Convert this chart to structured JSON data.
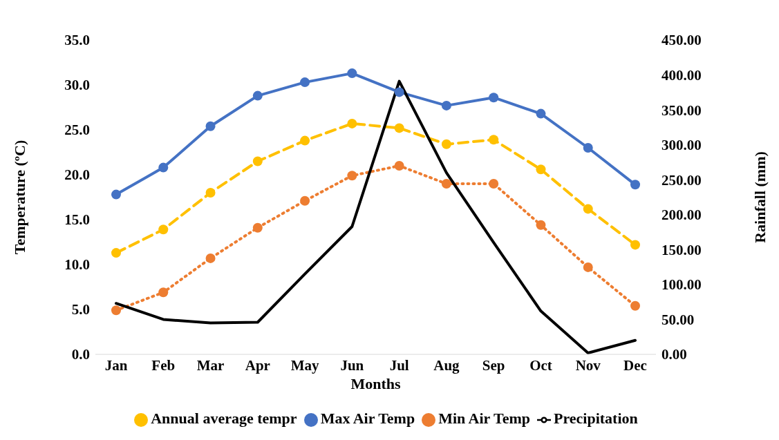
{
  "chart_data": {
    "type": "line",
    "xlabel": "Months",
    "ylabel": "Temperature (ºC)",
    "y2label": "Rainfall (mm)",
    "categories": [
      "Jan",
      "Feb",
      "Mar",
      "Apr",
      "May",
      "Jun",
      "Jul",
      "Aug",
      "Sep",
      "Oct",
      "Nov",
      "Dec"
    ],
    "series": [
      {
        "name": "Max Air Temp",
        "color": "#4472c4",
        "marker": "circle",
        "line_style": "solid",
        "values": [
          17.8,
          20.8,
          25.4,
          28.8,
          30.3,
          31.3,
          29.2,
          27.7,
          28.6,
          26.8,
          23.0,
          18.9
        ]
      },
      {
        "name": "Min Air Temp",
        "color": "#ed7d31",
        "marker": "circle",
        "line_style": "dotted",
        "values": [
          4.9,
          6.9,
          10.7,
          14.1,
          17.1,
          19.9,
          21.0,
          19.0,
          19.0,
          14.4,
          9.7,
          5.4
        ]
      },
      {
        "name": "Annual average tempr",
        "color": "#ffc000",
        "marker": "circle",
        "line_style": "dashed",
        "values": [
          11.3,
          13.9,
          18.0,
          21.5,
          23.8,
          25.7,
          25.2,
          23.4,
          23.9,
          20.6,
          16.2,
          12.2
        ]
      },
      {
        "name": "Precipitation",
        "color": "#000000",
        "marker": "none",
        "line_style": "solid",
        "axis": "y2",
        "values": [
          73,
          50,
          45,
          46,
          115,
          183,
          391,
          260,
          160,
          62,
          2,
          20
        ]
      }
    ],
    "ylim": [
      0,
      35
    ],
    "yticks": [
      {
        "value": 0,
        "label": "0.0"
      },
      {
        "value": 5,
        "label": "5.0"
      },
      {
        "value": 10,
        "label": "10.0"
      },
      {
        "value": 15,
        "label": "15.0"
      },
      {
        "value": 20,
        "label": "20.0"
      },
      {
        "value": 25,
        "label": "25.0"
      },
      {
        "value": 30,
        "label": "30.0"
      },
      {
        "value": 35,
        "label": "35.0"
      }
    ],
    "y2lim": [
      0,
      450
    ],
    "y2ticks": [
      {
        "value": 0,
        "label": "0.00"
      },
      {
        "value": 50,
        "label": "50.00"
      },
      {
        "value": 100,
        "label": "100.00"
      },
      {
        "value": 150,
        "label": "150.00"
      },
      {
        "value": 200,
        "label": "200.00"
      },
      {
        "value": 250,
        "label": "250.00"
      },
      {
        "value": 300,
        "label": "300.00"
      },
      {
        "value": 350,
        "label": "350.00"
      },
      {
        "value": 400,
        "label": "400.00"
      },
      {
        "value": 450,
        "label": "450.00"
      }
    ],
    "grid": false,
    "legend": "bottom"
  }
}
